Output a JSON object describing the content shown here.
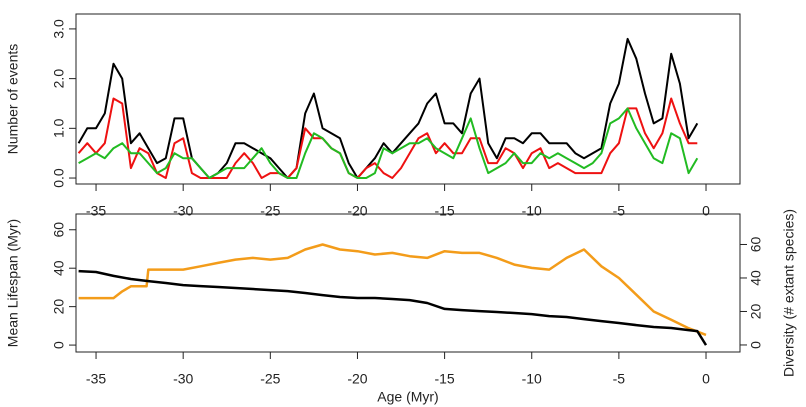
{
  "chart_data": [
    {
      "type": "line",
      "ylabel": "Number of events",
      "x": [
        -36,
        -35.5,
        -35,
        -34.5,
        -34,
        -33.5,
        -33,
        -32.5,
        -32,
        -31.5,
        -31,
        -30.5,
        -30,
        -29.5,
        -29,
        -28.5,
        -28,
        -27.5,
        -27,
        -26.5,
        -26,
        -25.5,
        -25,
        -24.5,
        -24,
        -23.5,
        -23,
        -22.5,
        -22,
        -21.5,
        -21,
        -20.5,
        -20,
        -19.5,
        -19,
        -18.5,
        -18,
        -17.5,
        -17,
        -16.5,
        -16,
        -15.5,
        -15,
        -14.5,
        -14,
        -13.5,
        -13,
        -12.5,
        -12,
        -11.5,
        -11,
        -10.5,
        -10,
        -9.5,
        -9,
        -8.5,
        -8,
        -7.5,
        -7,
        -6.5,
        -6,
        -5.5,
        -5,
        -4.5,
        -4,
        -3.5,
        -3,
        -2.5,
        -2,
        -1.5,
        -1,
        -0.5
      ],
      "series": [
        {
          "color": "#000000",
          "values": [
            0.7,
            1.0,
            1.0,
            1.3,
            2.3,
            2.0,
            0.7,
            0.9,
            0.6,
            0.3,
            0.4,
            1.2,
            1.2,
            0.4,
            0.2,
            0.0,
            0.1,
            0.3,
            0.7,
            0.7,
            0.6,
            0.5,
            0.4,
            0.2,
            0.0,
            0.2,
            1.3,
            1.7,
            1.0,
            0.9,
            0.8,
            0.3,
            0.0,
            0.2,
            0.4,
            0.7,
            0.5,
            0.7,
            0.9,
            1.1,
            1.5,
            1.7,
            1.1,
            1.1,
            0.9,
            1.7,
            2.0,
            0.7,
            0.4,
            0.8,
            0.8,
            0.7,
            0.9,
            0.9,
            0.7,
            0.7,
            0.7,
            0.5,
            0.4,
            0.5,
            0.6,
            1.5,
            1.9,
            2.8,
            2.4,
            1.7,
            1.1,
            1.2,
            2.5,
            1.9,
            0.8,
            1.1
          ]
        },
        {
          "color": "#ee1111",
          "values": [
            0.5,
            0.7,
            0.5,
            0.7,
            1.6,
            1.5,
            0.2,
            0.6,
            0.5,
            0.1,
            0.0,
            0.7,
            0.8,
            0.1,
            0.0,
            0.0,
            0.0,
            0.0,
            0.3,
            0.5,
            0.3,
            0.0,
            0.1,
            0.1,
            0.0,
            0.2,
            1.0,
            0.8,
            0.8,
            0.6,
            0.5,
            0.1,
            0.0,
            0.2,
            0.3,
            0.1,
            0.0,
            0.2,
            0.5,
            0.8,
            0.9,
            0.5,
            0.7,
            0.5,
            0.5,
            0.8,
            0.8,
            0.3,
            0.3,
            0.6,
            0.5,
            0.2,
            0.5,
            0.6,
            0.2,
            0.3,
            0.2,
            0.1,
            0.1,
            0.1,
            0.1,
            0.5,
            0.7,
            1.4,
            1.4,
            0.9,
            0.6,
            0.9,
            1.6,
            1.1,
            0.7,
            0.7
          ]
        },
        {
          "color": "#22bb22",
          "values": [
            0.3,
            0.4,
            0.5,
            0.4,
            0.6,
            0.7,
            0.5,
            0.5,
            0.3,
            0.1,
            0.2,
            0.5,
            0.4,
            0.4,
            0.2,
            0.0,
            0.1,
            0.2,
            0.2,
            0.2,
            0.4,
            0.6,
            0.3,
            0.1,
            0.0,
            0.0,
            0.5,
            0.9,
            0.8,
            0.6,
            0.5,
            0.1,
            0.0,
            0.0,
            0.1,
            0.6,
            0.5,
            0.6,
            0.7,
            0.7,
            0.8,
            0.6,
            0.5,
            0.4,
            0.8,
            1.2,
            0.6,
            0.1,
            0.2,
            0.3,
            0.5,
            0.3,
            0.3,
            0.5,
            0.4,
            0.5,
            0.4,
            0.3,
            0.2,
            0.3,
            0.5,
            1.1,
            1.2,
            1.4,
            1.0,
            0.7,
            0.4,
            0.3,
            0.9,
            0.8,
            0.1,
            0.4
          ]
        }
      ],
      "xlim": [
        -36.15,
        1.95
      ],
      "xticks": [
        -35,
        -30,
        -25,
        -20,
        -15,
        -10,
        -5,
        0
      ],
      "ylim": [
        -0.12,
        3.3
      ],
      "yticks": [
        {
          "value": 0,
          "label": "0.0"
        },
        {
          "value": 1,
          "label": "1.0"
        },
        {
          "value": 2,
          "label": "2.0"
        },
        {
          "value": 3,
          "label": "3.0"
        }
      ]
    },
    {
      "type": "line",
      "xlabel": "Age (Myr)",
      "ylabel": "Mean Lifespan (Myr)",
      "y2label": "Diversity (# extant species)",
      "series": [
        {
          "color": "#f39c1a",
          "axis": "y2",
          "x": [
            -36,
            -34,
            -33.5,
            -33,
            -32.1,
            -32,
            -30,
            -29,
            -28,
            -27,
            -26,
            -25,
            -24,
            -23,
            -22,
            -21,
            -20,
            -19,
            -18,
            -17,
            -16,
            -15,
            -14,
            -13,
            -12,
            -11,
            -10,
            -9,
            -8,
            -7,
            -6,
            -5,
            -4,
            -3,
            -2,
            -1,
            -0.5,
            0
          ],
          "values": [
            28,
            28,
            32,
            35,
            35,
            45,
            45,
            47,
            49,
            51,
            52,
            51,
            52,
            57,
            60,
            57,
            56,
            54,
            55,
            53,
            52,
            56,
            55,
            55,
            52,
            48,
            46,
            45,
            52,
            57,
            47,
            40,
            30,
            20,
            15,
            10,
            8,
            6
          ]
        },
        {
          "color": "#000000",
          "x": [
            -36,
            -35,
            -34,
            -33,
            -32,
            -31,
            -30,
            -29,
            -28,
            -27,
            -26,
            -25,
            -24,
            -23,
            -22,
            -21,
            -20,
            -19,
            -18,
            -17,
            -16,
            -15,
            -14,
            -13,
            -12,
            -11,
            -10,
            -9,
            -8,
            -7,
            -6,
            -5,
            -4,
            -3,
            -2,
            -1,
            -0.5,
            0
          ],
          "values": [
            38.5,
            38,
            36,
            34.4,
            33.3,
            32.3,
            31.2,
            30.7,
            30.2,
            29.7,
            29.2,
            28.6,
            28.1,
            27.1,
            26,
            25,
            24.5,
            24.5,
            24,
            23.4,
            21.9,
            18.8,
            18.2,
            17.7,
            17.2,
            16.7,
            16.1,
            15.1,
            14.6,
            13.5,
            12.5,
            11.5,
            10.4,
            9.4,
            8.9,
            7.8,
            7.3,
            0
          ]
        }
      ],
      "xlim": [
        -36.15,
        1.95
      ],
      "xticks": [
        -35,
        -30,
        -25,
        -20,
        -15,
        -10,
        -5,
        0
      ],
      "ylim": [
        -3.6,
        68.2
      ],
      "yticks": [
        0,
        20,
        40,
        60
      ],
      "y2lim": [
        -4.2,
        78.2
      ],
      "y2ticks": [
        0,
        20,
        40,
        60
      ]
    }
  ]
}
